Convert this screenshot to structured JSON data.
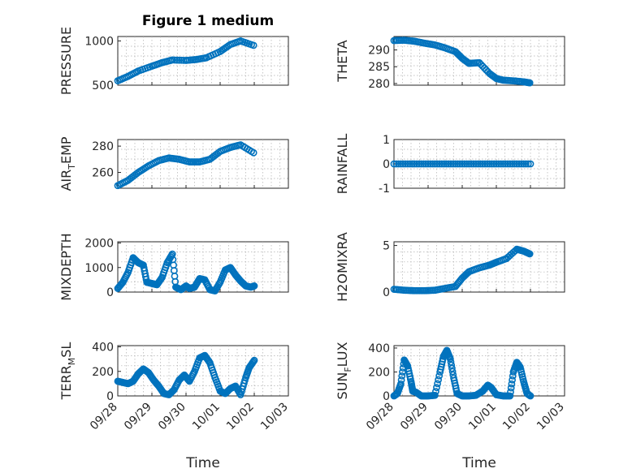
{
  "figure": {
    "title": "Figure 1 medium",
    "marker_color": "#0072BD"
  },
  "chart_data": [
    {
      "type": "scatter",
      "name": "pressure",
      "ylabel": "PRESSURE",
      "ylim": [
        500,
        1050
      ],
      "yticks": [
        "500",
        "1000"
      ],
      "ytick_values": [
        500,
        1000
      ],
      "xlim": [
        0,
        4
      ],
      "x": [
        0.0,
        0.3,
        0.6,
        1.0,
        1.3,
        1.6,
        2.0,
        2.3,
        2.6,
        3.0,
        3.3,
        3.6,
        3.98
      ],
      "y": [
        550,
        600,
        660,
        715,
        755,
        785,
        780,
        790,
        810,
        880,
        960,
        1000,
        950
      ]
    },
    {
      "type": "scatter",
      "name": "theta",
      "ylabel": "THETA",
      "ylim": [
        279.5,
        294
      ],
      "yticks": [
        "280",
        "285",
        "290"
      ],
      "ytick_values": [
        280,
        285,
        290
      ],
      "xlim": [
        0,
        4
      ],
      "x": [
        0.0,
        0.3,
        0.6,
        0.9,
        1.2,
        1.5,
        1.8,
        2.0,
        2.2,
        2.5,
        2.8,
        3.0,
        3.2,
        3.5,
        3.8,
        3.98
      ],
      "y": [
        292.8,
        292.9,
        292.6,
        292.0,
        291.5,
        290.6,
        289.5,
        287.5,
        286.0,
        286.2,
        283.0,
        281.5,
        281.0,
        280.8,
        280.5,
        280.2
      ]
    },
    {
      "type": "scatter",
      "name": "air_temp",
      "ylabel_main": "AIR",
      "ylabel_sub": "T",
      "ylabel_rest": "EMP",
      "ylim": [
        248,
        285
      ],
      "yticks": [
        "260",
        "280"
      ],
      "ytick_values": [
        260,
        280
      ],
      "xlim": [
        0,
        4
      ],
      "x": [
        0.0,
        0.3,
        0.6,
        0.9,
        1.2,
        1.5,
        1.8,
        2.1,
        2.4,
        2.7,
        3.0,
        3.3,
        3.6,
        3.98
      ],
      "y": [
        250,
        254,
        260,
        265,
        269,
        271,
        270,
        268,
        268,
        270,
        276,
        279,
        281,
        275
      ]
    },
    {
      "type": "scatter",
      "name": "rainfall",
      "ylabel": "RAINFALL",
      "ylim": [
        -1,
        1
      ],
      "yticks": [
        "-1",
        "0",
        "1"
      ],
      "ytick_values": [
        -1,
        0,
        1
      ],
      "xlim": [
        0,
        4
      ],
      "x": [
        0.0,
        4.0
      ],
      "y": [
        0,
        0
      ]
    },
    {
      "type": "scatter",
      "name": "mixdepth",
      "ylabel": "MIXDEPTH",
      "ylim": [
        0,
        2050
      ],
      "yticks": [
        "0",
        "1000",
        "2000"
      ],
      "ytick_values": [
        0,
        1000,
        2000
      ],
      "xlim": [
        0,
        4
      ],
      "x": [
        0.0,
        0.15,
        0.3,
        0.45,
        0.6,
        0.75,
        0.85,
        1.0,
        1.15,
        1.3,
        1.45,
        1.6,
        1.7,
        1.85,
        2.0,
        2.1,
        2.25,
        2.4,
        2.55,
        2.7,
        2.85,
        3.0,
        3.15,
        3.3,
        3.45,
        3.6,
        3.75,
        3.9,
        4.0
      ],
      "y": [
        150,
        400,
        800,
        1400,
        1200,
        1100,
        400,
        350,
        300,
        600,
        1200,
        1550,
        200,
        100,
        250,
        150,
        200,
        550,
        500,
        100,
        50,
        400,
        900,
        1000,
        700,
        450,
        250,
        200,
        250
      ]
    },
    {
      "type": "scatter",
      "name": "h2omixra",
      "ylabel": "H2OMIXRA",
      "ylim": [
        0,
        5.4
      ],
      "yticks": [
        "0",
        "5"
      ],
      "ytick_values": [
        0,
        5
      ],
      "xlim": [
        0,
        4
      ],
      "x": [
        0.0,
        0.3,
        0.6,
        0.9,
        1.2,
        1.5,
        1.8,
        2.0,
        2.2,
        2.5,
        2.8,
        3.0,
        3.3,
        3.6,
        3.8,
        3.98
      ],
      "y": [
        0.3,
        0.2,
        0.15,
        0.15,
        0.2,
        0.4,
        0.6,
        1.5,
        2.2,
        2.6,
        2.9,
        3.2,
        3.6,
        4.6,
        4.4,
        4.1
      ]
    },
    {
      "type": "scatter",
      "name": "terr_msl",
      "ylabel_main": "TERR",
      "ylabel_sub": "M",
      "ylabel_rest": "SL",
      "ylim": [
        0,
        410
      ],
      "yticks": [
        "0",
        "200",
        "400"
      ],
      "ytick_values": [
        0,
        200,
        400
      ],
      "xlim": [
        0,
        5
      ],
      "xticks": [
        "09/28",
        "09/29",
        "09/30",
        "10/01",
        "10/02",
        "10/03"
      ],
      "xtick_values": [
        0,
        1,
        2,
        3,
        4,
        5
      ],
      "xlabel": "Time",
      "x": [
        0.0,
        0.15,
        0.3,
        0.45,
        0.6,
        0.75,
        0.9,
        1.05,
        1.2,
        1.35,
        1.5,
        1.65,
        1.8,
        1.95,
        2.1,
        2.25,
        2.4,
        2.55,
        2.7,
        2.85,
        3.0,
        3.15,
        3.3,
        3.45,
        3.6,
        3.75,
        3.85,
        4.0
      ],
      "y": [
        120,
        110,
        100,
        120,
        180,
        220,
        190,
        130,
        80,
        20,
        10,
        50,
        130,
        170,
        120,
        200,
        310,
        330,
        270,
        150,
        40,
        20,
        60,
        80,
        10,
        150,
        230,
        290
      ]
    },
    {
      "type": "scatter",
      "name": "sun_flux",
      "ylabel_main": "SUN",
      "ylabel_sub": "F",
      "ylabel_rest": "LUX",
      "ylim": [
        0,
        420
      ],
      "yticks": [
        "0",
        "200",
        "400"
      ],
      "ytick_values": [
        0,
        200,
        400
      ],
      "xlim": [
        0,
        5
      ],
      "xticks": [
        "09/28",
        "09/29",
        "09/30",
        "10/01",
        "10/02",
        "10/03"
      ],
      "xtick_values": [
        0,
        1,
        2,
        3,
        4,
        5
      ],
      "xlabel": "Time",
      "x": [
        0.0,
        0.1,
        0.2,
        0.3,
        0.4,
        0.5,
        0.55,
        0.65,
        0.8,
        1.0,
        1.2,
        1.35,
        1.45,
        1.55,
        1.65,
        1.75,
        1.85,
        2.0,
        2.2,
        2.4,
        2.6,
        2.75,
        2.85,
        3.0,
        3.2,
        3.4,
        3.5,
        3.6,
        3.7,
        3.8,
        3.9,
        4.0
      ],
      "y": [
        0,
        20,
        100,
        300,
        250,
        120,
        40,
        30,
        0,
        0,
        5,
        200,
        330,
        380,
        310,
        150,
        20,
        0,
        0,
        5,
        40,
        90,
        70,
        10,
        0,
        0,
        200,
        280,
        240,
        120,
        20,
        0
      ]
    }
  ]
}
